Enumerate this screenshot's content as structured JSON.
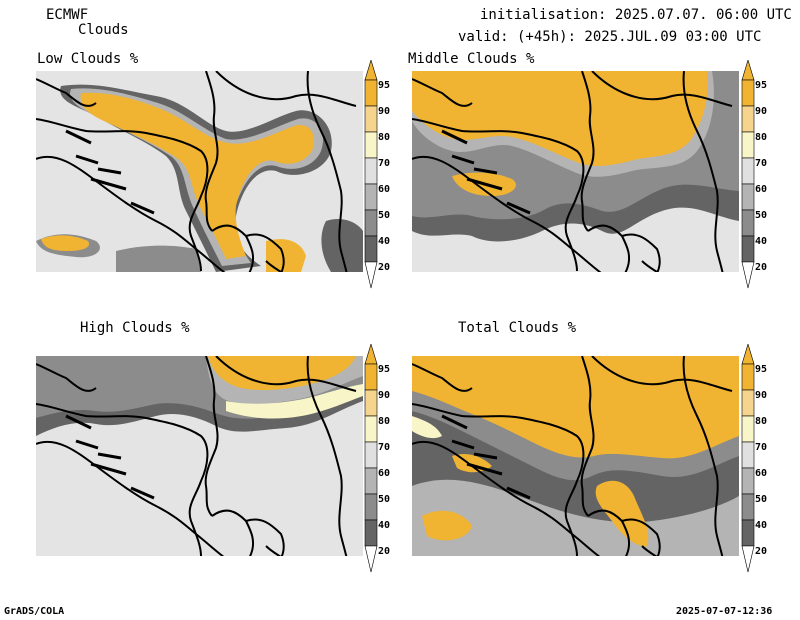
{
  "header": {
    "model": "ECMWF",
    "product": "Clouds",
    "init": "initialisation: 2025.07.07. 06:00 UTC",
    "valid": "valid: (+45h): 2025.JUL.09 03:00 UTC"
  },
  "footer": {
    "left": "GrADS/COLA",
    "right": "2025-07-07-12:36"
  },
  "panels": [
    {
      "title": "Low Clouds %"
    },
    {
      "title": "Middle Clouds %"
    },
    {
      "title": "High Clouds %"
    },
    {
      "title": "Total Clouds %"
    }
  ],
  "colorbar": {
    "levels": [
      "95",
      "90",
      "80",
      "70",
      "60",
      "50",
      "40",
      "20"
    ],
    "colors": {
      "gt95": "#f0b432",
      "90_95": "#f0b432",
      "80_90": "#f5d58e",
      "70_80": "#f8f5c8",
      "60_70": "#e0e0e0",
      "50_60": "#b4b4b4",
      "40_50": "#8c8c8c",
      "20_40": "#646464",
      "lt20": "#ffffff"
    }
  },
  "colors": {
    "background_field": "#e4e4e4",
    "border_lines": "#000000"
  }
}
